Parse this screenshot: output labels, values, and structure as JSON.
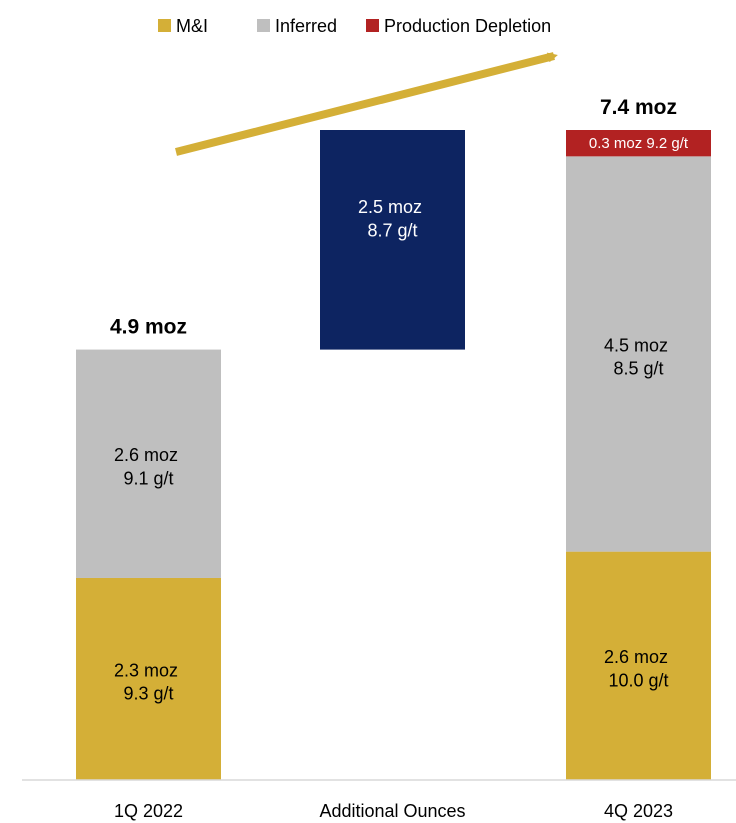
{
  "chart_data": {
    "type": "bar",
    "subtype": "stacked-waterfall",
    "categories": [
      "1Q 2022",
      "Additional Ounces",
      "4Q 2023"
    ],
    "legend": {
      "position": "top",
      "items": [
        {
          "name": "M&I",
          "color": "#D4AF37"
        },
        {
          "name": "Inferred",
          "color": "#BFBFBF"
        },
        {
          "name": "Production Depletion",
          "color": "#B22222"
        }
      ]
    },
    "colors": {
      "mi": "#D4AF37",
      "inferred": "#BFBFBF",
      "depletion": "#B22222",
      "additional": "#0D2461",
      "arrow": "#D4AF37"
    },
    "series": [
      {
        "name": "M&I",
        "values": [
          2.3,
          0,
          2.6
        ],
        "grades": [
          "9.3 g/t",
          "",
          "10.0 g/t"
        ]
      },
      {
        "name": "Inferred",
        "values": [
          2.6,
          0,
          4.5
        ],
        "grades": [
          "9.1 g/t",
          "",
          "8.5 g/t"
        ]
      },
      {
        "name": "Additional",
        "values": [
          0,
          2.5,
          0
        ],
        "grades": [
          "",
          "8.7 g/t",
          ""
        ],
        "base": 4.9
      },
      {
        "name": "Production Depletion",
        "values": [
          0,
          0,
          0.3
        ],
        "grades": [
          "",
          "",
          "9.2 g/t"
        ]
      }
    ],
    "labels": {
      "b1_mi": [
        "2.3 moz",
        "9.3 g/t"
      ],
      "b1_inf": [
        "2.6 moz",
        "9.1 g/t"
      ],
      "b2_add": [
        "2.5 moz",
        "8.7 g/t"
      ],
      "b3_mi": [
        "2.6 moz",
        "10.0 g/t"
      ],
      "b3_inf": [
        "4.5 moz",
        "8.5 g/t"
      ],
      "b3_dep": "0.3 moz 9.2 g/t"
    },
    "totals": [
      "4.9 moz",
      "",
      "7.4 moz"
    ],
    "ylim": [
      0,
      7.4
    ],
    "grid": false,
    "axes_visible": false
  }
}
